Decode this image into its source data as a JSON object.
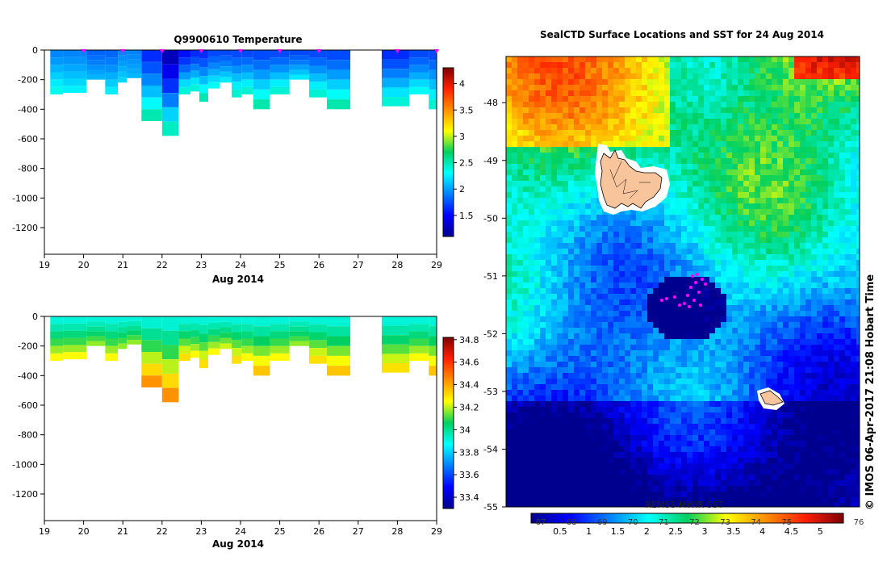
{
  "chart_data": [
    {
      "type": "heatmap",
      "title": "Q9900610  Temperature",
      "xlabel": "Aug 2014",
      "x_ticks": [
        "19",
        "20",
        "21",
        "22",
        "23",
        "24",
        "25",
        "26",
        "27",
        "28",
        "29"
      ],
      "y_ticks": [
        "0",
        "-200",
        "-400",
        "-600",
        "-800",
        "-1000",
        "-1200"
      ],
      "xlim": [
        19,
        29
      ],
      "ylim": [
        -1380,
        0
      ],
      "colorbar": {
        "min": 1.1,
        "max": 4.3,
        "ticks": [
          "1.5",
          "2",
          "2.5",
          "3",
          "3.5",
          "4"
        ]
      },
      "profiles": [
        {
          "day": 19.15,
          "depth": 300,
          "surface": 1.9,
          "bottom": 2.4
        },
        {
          "day": 19.8,
          "depth": 290,
          "surface": 1.9,
          "bottom": 2.3
        },
        {
          "day": 20.35,
          "depth": 200,
          "surface": 1.8,
          "bottom": 2.1
        },
        {
          "day": 20.75,
          "depth": 300,
          "surface": 1.8,
          "bottom": 2.3
        },
        {
          "day": 21.0,
          "depth": 220,
          "surface": 1.9,
          "bottom": 2.2
        },
        {
          "day": 21.2,
          "depth": 190,
          "surface": 1.9,
          "bottom": 2.1
        },
        {
          "day": 21.75,
          "depth": 480,
          "surface": 1.6,
          "bottom": 2.6
        },
        {
          "day": 22.25,
          "depth": 580,
          "surface": 1.2,
          "bottom": 2.6
        },
        {
          "day": 22.6,
          "depth": 300,
          "surface": 1.5,
          "bottom": 2.5
        },
        {
          "day": 22.85,
          "depth": 280,
          "surface": 1.6,
          "bottom": 2.5
        },
        {
          "day": 23.05,
          "depth": 350,
          "surface": 1.6,
          "bottom": 2.6
        },
        {
          "day": 23.3,
          "depth": 260,
          "surface": 1.7,
          "bottom": 2.4
        },
        {
          "day": 23.65,
          "depth": 220,
          "surface": 1.7,
          "bottom": 2.3
        },
        {
          "day": 23.9,
          "depth": 320,
          "surface": 1.7,
          "bottom": 2.5
        },
        {
          "day": 24.15,
          "depth": 300,
          "surface": 1.7,
          "bottom": 2.5
        },
        {
          "day": 24.5,
          "depth": 400,
          "surface": 1.7,
          "bottom": 2.6
        },
        {
          "day": 25.0,
          "depth": 300,
          "surface": 1.7,
          "bottom": 2.5
        },
        {
          "day": 25.5,
          "depth": 200,
          "surface": 1.7,
          "bottom": 2.3
        },
        {
          "day": 26.0,
          "depth": 320,
          "surface": 1.7,
          "bottom": 2.5
        },
        {
          "day": 26.4,
          "depth": 400,
          "surface": 1.7,
          "bottom": 2.6
        },
        {
          "day": 28.0,
          "depth": 380,
          "surface": 1.6,
          "bottom": 2.5
        },
        {
          "day": 28.6,
          "depth": 300,
          "surface": 1.7,
          "bottom": 2.4
        },
        {
          "day": 29.0,
          "depth": 400,
          "surface": 1.7,
          "bottom": 2.5
        }
      ],
      "markers_days": [
        20,
        21,
        22,
        23,
        24,
        25,
        26,
        28,
        29
      ]
    },
    {
      "type": "heatmap",
      "title": "",
      "xlabel": "Aug 2014",
      "x_ticks": [
        "19",
        "20",
        "21",
        "22",
        "23",
        "24",
        "25",
        "26",
        "27",
        "28",
        "29"
      ],
      "y_ticks": [
        "0",
        "-200",
        "-400",
        "-600",
        "-800",
        "-1000",
        "-1200"
      ],
      "xlim": [
        19,
        29
      ],
      "ylim": [
        -1380,
        0
      ],
      "colorbar": {
        "min": 33.3,
        "max": 34.82,
        "ticks": [
          "33.4",
          "33.6",
          "33.8",
          "34",
          "34.2",
          "34.4",
          "34.6",
          "34.8"
        ]
      },
      "profiles": [
        {
          "day": 19.15,
          "depth": 300,
          "surface": 33.9,
          "bottom": 34.3
        },
        {
          "day": 19.8,
          "depth": 290,
          "surface": 33.9,
          "bottom": 34.3
        },
        {
          "day": 20.35,
          "depth": 200,
          "surface": 33.9,
          "bottom": 34.2
        },
        {
          "day": 20.75,
          "depth": 300,
          "surface": 33.9,
          "bottom": 34.3
        },
        {
          "day": 21.0,
          "depth": 220,
          "surface": 33.9,
          "bottom": 34.2
        },
        {
          "day": 21.2,
          "depth": 190,
          "surface": 33.9,
          "bottom": 34.2
        },
        {
          "day": 21.75,
          "depth": 480,
          "surface": 33.9,
          "bottom": 34.5
        },
        {
          "day": 22.25,
          "depth": 580,
          "surface": 33.9,
          "bottom": 34.5
        },
        {
          "day": 22.6,
          "depth": 300,
          "surface": 33.9,
          "bottom": 34.35
        },
        {
          "day": 22.85,
          "depth": 280,
          "surface": 33.9,
          "bottom": 34.3
        },
        {
          "day": 23.05,
          "depth": 350,
          "surface": 33.9,
          "bottom": 34.35
        },
        {
          "day": 23.3,
          "depth": 260,
          "surface": 33.9,
          "bottom": 34.3
        },
        {
          "day": 23.65,
          "depth": 220,
          "surface": 33.9,
          "bottom": 34.25
        },
        {
          "day": 23.9,
          "depth": 320,
          "surface": 33.9,
          "bottom": 34.35
        },
        {
          "day": 24.15,
          "depth": 300,
          "surface": 33.9,
          "bottom": 34.3
        },
        {
          "day": 24.5,
          "depth": 400,
          "surface": 33.9,
          "bottom": 34.4
        },
        {
          "day": 25.0,
          "depth": 300,
          "surface": 33.9,
          "bottom": 34.3
        },
        {
          "day": 25.5,
          "depth": 200,
          "surface": 33.9,
          "bottom": 34.2
        },
        {
          "day": 26.0,
          "depth": 320,
          "surface": 33.9,
          "bottom": 34.35
        },
        {
          "day": 26.4,
          "depth": 400,
          "surface": 33.9,
          "bottom": 34.4
        },
        {
          "day": 28.0,
          "depth": 380,
          "surface": 33.9,
          "bottom": 34.35
        },
        {
          "day": 28.6,
          "depth": 300,
          "surface": 33.9,
          "bottom": 34.3
        },
        {
          "day": 29.0,
          "depth": 400,
          "surface": 33.9,
          "bottom": 34.4
        }
      ]
    },
    {
      "type": "heatmap",
      "title": "SealCTD Surface Locations and SST for 24 Aug 2014",
      "subtitle": "REMSS MWIR SST",
      "y_ticks": [
        "-48",
        "-49",
        "-50",
        "-51",
        "-52",
        "-53",
        "-54",
        "-55"
      ],
      "ylim": [
        -55,
        -47.2
      ],
      "colorbar": {
        "min": 0,
        "max": 5.4,
        "ticks_bottom": [
          "0.5",
          "1",
          "1.5",
          "2",
          "2.5",
          "3",
          "3.5",
          "4",
          "4.5",
          "5"
        ],
        "ticks_top": [
          "67",
          "68",
          "69",
          "70",
          "71",
          "72",
          "73",
          "74",
          "75",
          "76"
        ]
      },
      "credit": "© IMOS 06-Apr-2017 21:08 Hobart Time"
    }
  ],
  "colors": {
    "marker": "#ff00ff",
    "land": "#f8c49c",
    "land_edge": "#000000"
  }
}
